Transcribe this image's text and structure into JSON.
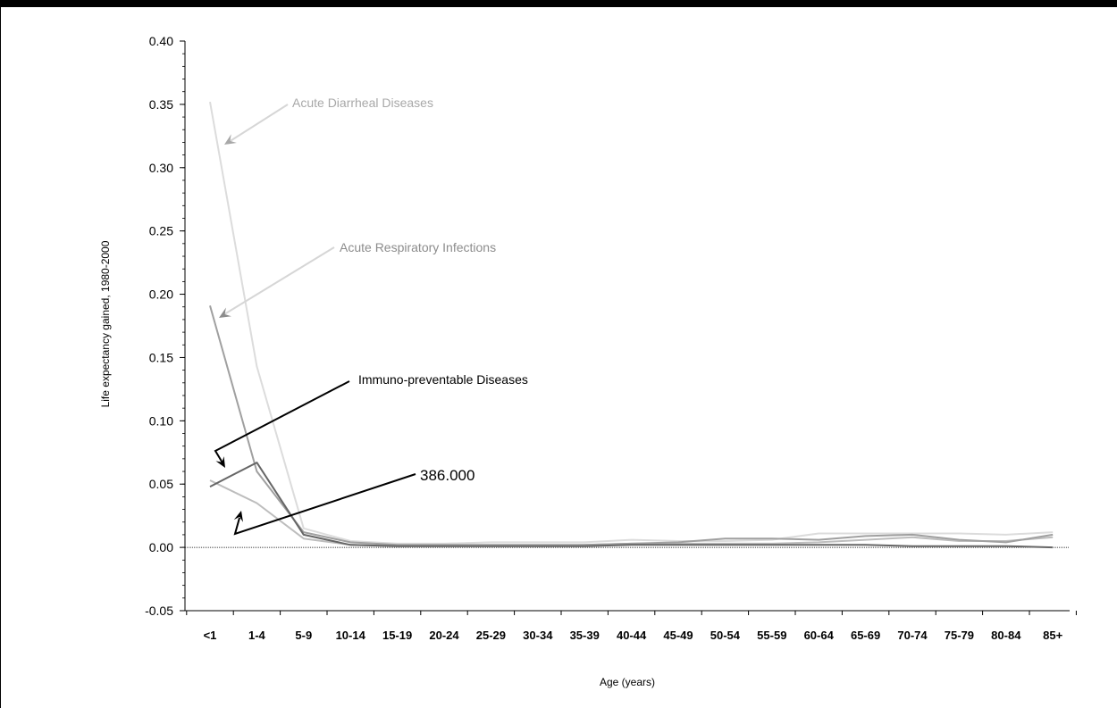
{
  "chart_data": {
    "type": "line",
    "title": "",
    "xlabel": "Age (years)",
    "ylabel": "Life expectancy gained, 1980-2000",
    "ylim": [
      -0.05,
      0.4
    ],
    "yticks": [
      "0.40",
      "0.35",
      "0.30",
      "0.25",
      "0.20",
      "0.15",
      "0.10",
      "0.05",
      "0.00",
      "-0.05"
    ],
    "ytick_values": [
      0.4,
      0.35,
      0.3,
      0.25,
      0.2,
      0.15,
      0.1,
      0.05,
      0.0,
      -0.05
    ],
    "categories": [
      "<1",
      "1-4",
      "5-9",
      "10-14",
      "15-19",
      "20-24",
      "25-29",
      "30-34",
      "35-39",
      "40-44",
      "45-49",
      "50-54",
      "55-59",
      "60-64",
      "65-69",
      "70-74",
      "75-79",
      "80-84",
      "85+"
    ],
    "grid": false,
    "legend": "none",
    "series": [
      {
        "name": "Acute Diarrheal Diseases",
        "color": "#dcdcdc",
        "values": [
          0.352,
          0.143,
          0.015,
          0.005,
          0.003,
          0.003,
          0.004,
          0.004,
          0.004,
          0.006,
          0.005,
          0.005,
          0.006,
          0.011,
          0.011,
          0.011,
          0.011,
          0.01,
          0.012
        ]
      },
      {
        "name": "Acute Respiratory Infections",
        "color": "#a0a0a0",
        "values": [
          0.191,
          0.06,
          0.012,
          0.004,
          0.002,
          0.002,
          0.002,
          0.002,
          0.002,
          0.003,
          0.004,
          0.007,
          0.007,
          0.006,
          0.009,
          0.01,
          0.006,
          0.004,
          0.01
        ]
      },
      {
        "name": "Immuno-preventable Diseases",
        "color": "#666666",
        "values": [
          0.048,
          0.067,
          0.01,
          0.002,
          0.001,
          0.001,
          0.001,
          0.001,
          0.001,
          0.002,
          0.002,
          0.002,
          0.002,
          0.002,
          0.002,
          0.001,
          0.001,
          0.001,
          0.0
        ]
      },
      {
        "name": "386.000",
        "color": "#bdbdbd",
        "values": [
          0.053,
          0.035,
          0.007,
          0.002,
          0.001,
          0.001,
          0.001,
          0.001,
          0.002,
          0.003,
          0.003,
          0.003,
          0.003,
          0.004,
          0.006,
          0.008,
          0.005,
          0.005,
          0.008
        ]
      }
    ],
    "annotations": [
      {
        "text": "Acute Diarrheal Diseases",
        "color": "#a8a8a8",
        "series": 0
      },
      {
        "text": "Acute Respiratory Infections",
        "color": "#8c8c8c",
        "series": 1
      },
      {
        "text": "Immuno-preventable Diseases",
        "color": "#000000",
        "series": 2
      },
      {
        "text": "386.000",
        "color": "#000000",
        "series": 3
      }
    ]
  }
}
